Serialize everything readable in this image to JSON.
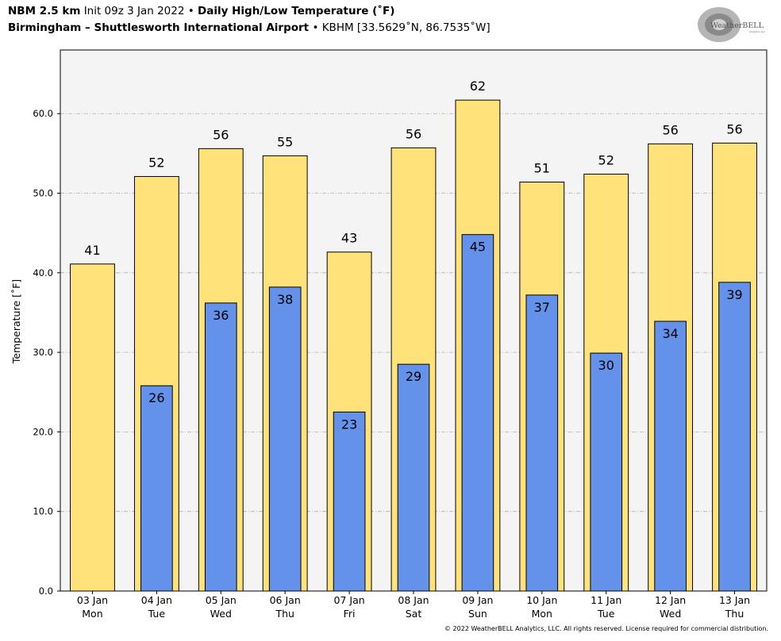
{
  "header": {
    "model": "NBM 2.5 km",
    "init": "Init 09z 3 Jan 2022",
    "bullet": "•",
    "product": "Daily High/Low Temperature (˚F)",
    "station_name": "Birmingham – Shuttlesworth International Airport",
    "station_info": "KBHM [33.5629˚N, 86.7535˚W]"
  },
  "logo": {
    "text": "WeatherBELL",
    "subtext": "Analytics LLC"
  },
  "copyright": "© 2022 WeatherBELL Analytics, LLC. All rights reserved. License required for commercial distribution.",
  "colors": {
    "high": "#ffe37a",
    "low": "#6492ea",
    "plot_bg": "#f4f4f4",
    "grid": "#b0b0b0"
  },
  "chart_data": {
    "type": "bar",
    "ylabel": "Temperature [˚F]",
    "ylim": [
      0,
      68
    ],
    "yticks": [
      0,
      10,
      20,
      30,
      40,
      50,
      60
    ],
    "ytick_labels": [
      "0.0",
      "10.0",
      "20.0",
      "30.0",
      "40.0",
      "50.0",
      "60.0"
    ],
    "grid": "horizontal dashed",
    "categories": [
      [
        "03 Jan",
        "Mon"
      ],
      [
        "04 Jan",
        "Tue"
      ],
      [
        "05 Jan",
        "Wed"
      ],
      [
        "06 Jan",
        "Thu"
      ],
      [
        "07 Jan",
        "Fri"
      ],
      [
        "08 Jan",
        "Sat"
      ],
      [
        "09 Jan",
        "Sun"
      ],
      [
        "10 Jan",
        "Mon"
      ],
      [
        "11 Jan",
        "Tue"
      ],
      [
        "12 Jan",
        "Wed"
      ],
      [
        "13 Jan",
        "Thu"
      ]
    ],
    "series": [
      {
        "values": [
          41.1,
          52.1,
          55.6,
          54.7,
          42.6,
          55.7,
          61.7,
          51.4,
          52.4,
          56.2,
          56.3
        ],
        "labels": [
          "41",
          "52",
          "56",
          "55",
          "43",
          "56",
          "62",
          "51",
          "52",
          "56",
          "56"
        ]
      },
      {
        "values": [
          null,
          25.8,
          36.2,
          38.2,
          22.5,
          28.5,
          44.8,
          37.2,
          29.9,
          33.9,
          38.8
        ],
        "labels": [
          null,
          "26",
          "36",
          "38",
          "23",
          "29",
          "45",
          "37",
          "30",
          "34",
          "39"
        ]
      }
    ]
  }
}
